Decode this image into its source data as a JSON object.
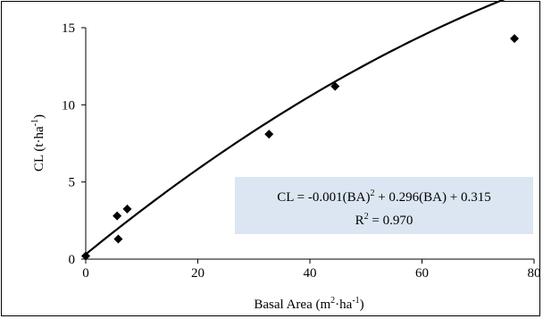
{
  "chart_data": {
    "type": "scatter",
    "xlabel": {
      "text": "Basal Area (m",
      "sup1": "2",
      "mid": "·ha",
      "sup2": "-1",
      "end": ")"
    },
    "ylabel": {
      "text": "CL (t·ha",
      "sup": "-1",
      "end": ")"
    },
    "xlim": [
      0,
      80
    ],
    "ylim": [
      0,
      15
    ],
    "xticks": [
      0,
      20,
      40,
      60,
      80
    ],
    "yticks": [
      0,
      5,
      10,
      15
    ],
    "grid": false,
    "legend": "none",
    "points": [
      {
        "x": 0,
        "y": 0.2
      },
      {
        "x": 5.6,
        "y": 2.8
      },
      {
        "x": 5.8,
        "y": 1.3
      },
      {
        "x": 7.4,
        "y": 3.25
      },
      {
        "x": 32.7,
        "y": 8.1
      },
      {
        "x": 44.5,
        "y": 11.2
      },
      {
        "x": 76.5,
        "y": 14.3
      }
    ],
    "trendline": {
      "type": "polynomial",
      "a": -0.001,
      "b": 0.296,
      "c": 0.315,
      "x_range": [
        0,
        76.5
      ]
    },
    "annotation": {
      "line1_a": "CL = -0.001(BA)",
      "line1_sup": "2",
      "line1_b": " + 0.296(BA) + 0.315",
      "line2_a": "R",
      "line2_sup": "2",
      "line2_b": " = 0.970"
    },
    "colors": {
      "marker": "#000000",
      "line": "#000000",
      "annotation_bg": "#dce6f2"
    }
  }
}
